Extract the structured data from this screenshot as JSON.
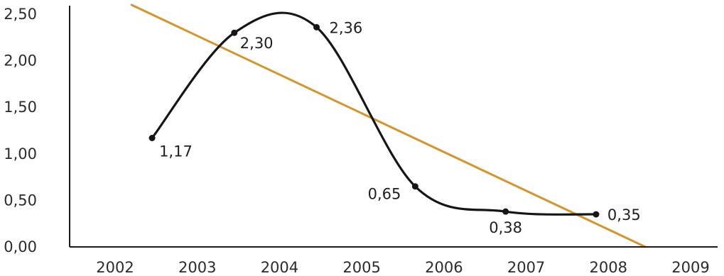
{
  "chart_data": {
    "type": "line",
    "title": "",
    "xlabel": "",
    "ylabel": "",
    "ylim": [
      0,
      2.5
    ],
    "xlim": [
      2002,
      2009
    ],
    "x_ticks": [
      "2002",
      "2003",
      "2004",
      "2005",
      "2006",
      "2007",
      "2008",
      "2009"
    ],
    "y_ticks": [
      "0,00",
      "0,50",
      "1,00",
      "1,50",
      "2,00",
      "2,50"
    ],
    "grid": false,
    "legend": "none",
    "series": [
      {
        "color": "#161616",
        "smooth": true,
        "points": [
          {
            "x": 2002.45,
            "y": 1.17,
            "label": "1,17"
          },
          {
            "x": 2003.45,
            "y": 2.3,
            "label": "2,30"
          },
          {
            "x": 2004.45,
            "y": 2.36,
            "label": "2,36"
          },
          {
            "x": 2005.65,
            "y": 0.65,
            "label": "0,65"
          },
          {
            "x": 2006.75,
            "y": 0.38,
            "label": "0,38"
          },
          {
            "x": 2007.85,
            "y": 0.35,
            "label": "0,35"
          }
        ]
      }
    ],
    "trendline": {
      "color": "#d4952c",
      "start": {
        "x": 2002.2,
        "y": 2.6
      },
      "end": {
        "x": 2008.45,
        "y": 0.0
      }
    }
  }
}
